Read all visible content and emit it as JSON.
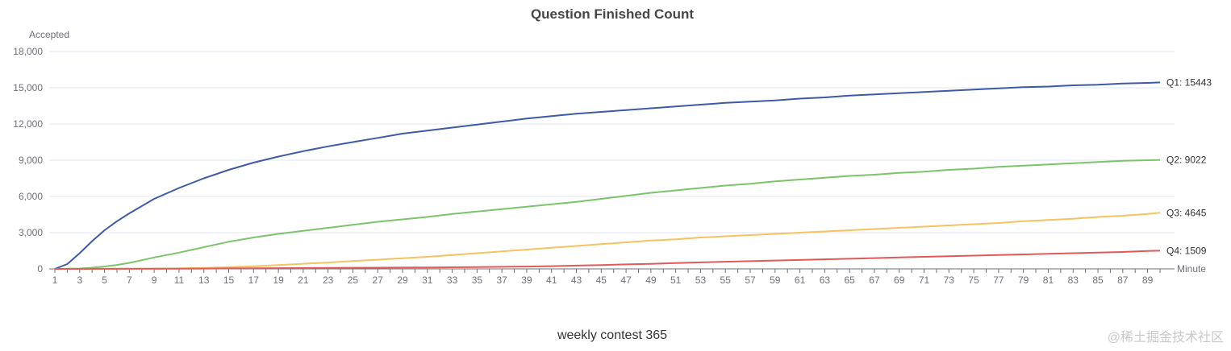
{
  "watermark": "@稀土掘金技术社区",
  "chart_data": {
    "type": "line",
    "title": "Question Finished Count",
    "subtitle": "weekly contest 365",
    "xlabel": "Minute",
    "ylabel": "Accepted",
    "xlim": [
      1,
      90
    ],
    "ylim": [
      0,
      18000
    ],
    "x_ticks": [
      1,
      3,
      5,
      7,
      9,
      11,
      13,
      15,
      17,
      19,
      21,
      23,
      25,
      27,
      29,
      31,
      33,
      35,
      37,
      39,
      41,
      43,
      45,
      47,
      49,
      51,
      53,
      55,
      57,
      59,
      61,
      63,
      65,
      67,
      69,
      71,
      73,
      75,
      77,
      79,
      81,
      83,
      85,
      87,
      89
    ],
    "y_ticks": [
      0,
      3000,
      6000,
      9000,
      12000,
      15000,
      18000
    ],
    "y_tick_labels": [
      "0",
      "3,000",
      "6,000",
      "9,000",
      "12,000",
      "15,000",
      "18,000"
    ],
    "grid": "horizontal",
    "series": [
      {
        "name": "Q1",
        "end_label": "Q1: 15443",
        "color": "#3c5aa8",
        "points": [
          [
            1,
            0
          ],
          [
            2,
            400
          ],
          [
            3,
            1300
          ],
          [
            4,
            2300
          ],
          [
            5,
            3200
          ],
          [
            6,
            3950
          ],
          [
            7,
            4600
          ],
          [
            9,
            5800
          ],
          [
            11,
            6700
          ],
          [
            13,
            7500
          ],
          [
            15,
            8200
          ],
          [
            17,
            8800
          ],
          [
            19,
            9300
          ],
          [
            21,
            9750
          ],
          [
            23,
            10150
          ],
          [
            25,
            10500
          ],
          [
            27,
            10850
          ],
          [
            29,
            11200
          ],
          [
            31,
            11450
          ],
          [
            33,
            11700
          ],
          [
            35,
            11950
          ],
          [
            37,
            12200
          ],
          [
            39,
            12450
          ],
          [
            41,
            12650
          ],
          [
            43,
            12850
          ],
          [
            45,
            13000
          ],
          [
            47,
            13150
          ],
          [
            49,
            13300
          ],
          [
            51,
            13450
          ],
          [
            53,
            13600
          ],
          [
            55,
            13750
          ],
          [
            57,
            13850
          ],
          [
            59,
            13950
          ],
          [
            61,
            14100
          ],
          [
            63,
            14200
          ],
          [
            65,
            14350
          ],
          [
            67,
            14450
          ],
          [
            69,
            14550
          ],
          [
            71,
            14650
          ],
          [
            73,
            14750
          ],
          [
            75,
            14850
          ],
          [
            77,
            14950
          ],
          [
            79,
            15050
          ],
          [
            81,
            15100
          ],
          [
            83,
            15200
          ],
          [
            85,
            15250
          ],
          [
            87,
            15350
          ],
          [
            89,
            15400
          ],
          [
            90,
            15443
          ]
        ]
      },
      {
        "name": "Q2",
        "end_label": "Q2: 9022",
        "color": "#7cc46c",
        "points": [
          [
            1,
            0
          ],
          [
            3,
            30
          ],
          [
            4,
            100
          ],
          [
            5,
            200
          ],
          [
            6,
            330
          ],
          [
            7,
            500
          ],
          [
            9,
            950
          ],
          [
            11,
            1350
          ],
          [
            13,
            1800
          ],
          [
            15,
            2250
          ],
          [
            17,
            2600
          ],
          [
            19,
            2900
          ],
          [
            21,
            3150
          ],
          [
            23,
            3400
          ],
          [
            25,
            3650
          ],
          [
            27,
            3900
          ],
          [
            29,
            4100
          ],
          [
            31,
            4300
          ],
          [
            33,
            4550
          ],
          [
            35,
            4750
          ],
          [
            37,
            4950
          ],
          [
            39,
            5150
          ],
          [
            41,
            5350
          ],
          [
            43,
            5550
          ],
          [
            45,
            5800
          ],
          [
            47,
            6050
          ],
          [
            49,
            6300
          ],
          [
            51,
            6500
          ],
          [
            53,
            6700
          ],
          [
            55,
            6900
          ],
          [
            57,
            7050
          ],
          [
            59,
            7250
          ],
          [
            61,
            7400
          ],
          [
            63,
            7550
          ],
          [
            65,
            7700
          ],
          [
            67,
            7800
          ],
          [
            69,
            7950
          ],
          [
            71,
            8050
          ],
          [
            73,
            8200
          ],
          [
            75,
            8300
          ],
          [
            77,
            8450
          ],
          [
            79,
            8550
          ],
          [
            81,
            8650
          ],
          [
            83,
            8750
          ],
          [
            85,
            8850
          ],
          [
            87,
            8950
          ],
          [
            89,
            9000
          ],
          [
            90,
            9022
          ]
        ]
      },
      {
        "name": "Q3",
        "end_label": "Q3: 4645",
        "color": "#f8c25e",
        "points": [
          [
            1,
            0
          ],
          [
            9,
            20
          ],
          [
            11,
            40
          ],
          [
            13,
            80
          ],
          [
            15,
            150
          ],
          [
            17,
            220
          ],
          [
            19,
            320
          ],
          [
            21,
            430
          ],
          [
            23,
            530
          ],
          [
            25,
            650
          ],
          [
            27,
            760
          ],
          [
            29,
            880
          ],
          [
            31,
            1000
          ],
          [
            33,
            1150
          ],
          [
            35,
            1300
          ],
          [
            37,
            1450
          ],
          [
            39,
            1600
          ],
          [
            41,
            1750
          ],
          [
            43,
            1900
          ],
          [
            45,
            2050
          ],
          [
            47,
            2200
          ],
          [
            49,
            2350
          ],
          [
            51,
            2450
          ],
          [
            53,
            2600
          ],
          [
            55,
            2700
          ],
          [
            57,
            2800
          ],
          [
            59,
            2900
          ],
          [
            61,
            3000
          ],
          [
            63,
            3100
          ],
          [
            65,
            3200
          ],
          [
            67,
            3300
          ],
          [
            69,
            3400
          ],
          [
            71,
            3500
          ],
          [
            73,
            3600
          ],
          [
            75,
            3700
          ],
          [
            77,
            3800
          ],
          [
            79,
            3950
          ],
          [
            81,
            4050
          ],
          [
            83,
            4150
          ],
          [
            85,
            4300
          ],
          [
            87,
            4400
          ],
          [
            89,
            4550
          ],
          [
            90,
            4645
          ]
        ]
      },
      {
        "name": "Q4",
        "end_label": "Q4: 1509",
        "color": "#e05a5a",
        "points": [
          [
            1,
            0
          ],
          [
            11,
            15
          ],
          [
            15,
            40
          ],
          [
            19,
            60
          ],
          [
            23,
            80
          ],
          [
            27,
            100
          ],
          [
            31,
            120
          ],
          [
            35,
            150
          ],
          [
            39,
            190
          ],
          [
            41,
            230
          ],
          [
            43,
            270
          ],
          [
            45,
            320
          ],
          [
            47,
            370
          ],
          [
            49,
            420
          ],
          [
            51,
            480
          ],
          [
            53,
            540
          ],
          [
            55,
            590
          ],
          [
            57,
            640
          ],
          [
            59,
            690
          ],
          [
            61,
            740
          ],
          [
            63,
            790
          ],
          [
            65,
            840
          ],
          [
            67,
            890
          ],
          [
            69,
            950
          ],
          [
            71,
            1000
          ],
          [
            73,
            1050
          ],
          [
            75,
            1100
          ],
          [
            77,
            1150
          ],
          [
            79,
            1200
          ],
          [
            81,
            1250
          ],
          [
            83,
            1300
          ],
          [
            85,
            1350
          ],
          [
            87,
            1400
          ],
          [
            89,
            1480
          ],
          [
            90,
            1509
          ]
        ]
      }
    ]
  }
}
